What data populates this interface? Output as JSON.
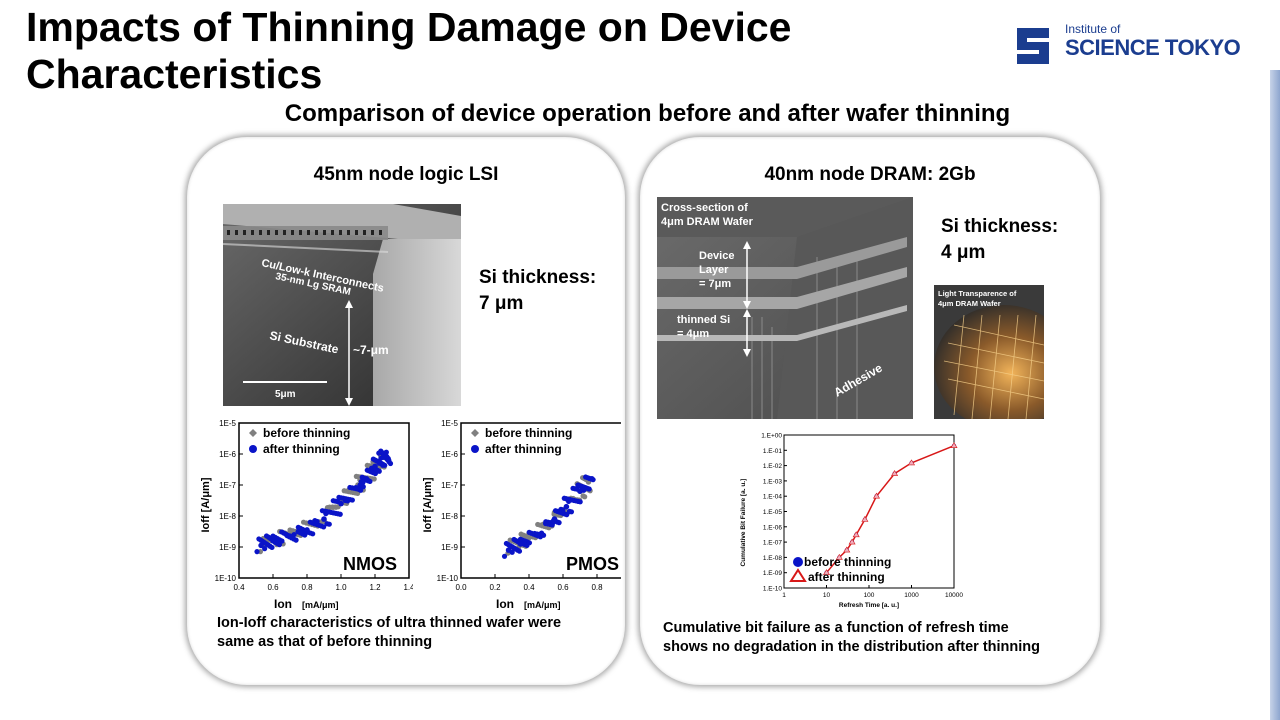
{
  "slide": {
    "title": "Impacts of Thinning Damage on Device Characteristics",
    "subtitle": "Comparison of device operation before and after wafer thinning"
  },
  "logo": {
    "line1": "Institute of",
    "line2": "SCIENCE TOKYO",
    "color": "#1b3d8f"
  },
  "left_panel": {
    "title": "45nm node logic LSI",
    "thickness_line1": "Si thickness:",
    "thickness_line2": "7 μm",
    "sem_labels": {
      "interconnects": "Cu/Low-k Interconnects",
      "sram": "35-nm Lg SRAM",
      "substrate": "Si Substrate",
      "depth": "~7-μm",
      "scalebar": "5μm"
    },
    "caption_line1": "Ion-Ioff characteristics of ultra thinned wafer were",
    "caption_line2": "same as that of before thinning"
  },
  "right_panel": {
    "title": "40nm node DRAM: 2Gb",
    "thickness_line1": "Si thickness:",
    "thickness_line2": "4 μm",
    "sem_labels": {
      "cross_section_1": "Cross-section of",
      "cross_section_2": "4μm DRAM Wafer",
      "device_1": "Device",
      "device_2": "Layer",
      "device_3": "= 7μm",
      "thinned_1": "thinned Si",
      "thinned_2": "= 4μm",
      "adhesive": "Adhesive"
    },
    "photo_labels": {
      "line1": "Light Transparence of",
      "line2": "4μm DRAM Wafer"
    },
    "caption_line1": "Cumulative bit failure as a function of refresh time",
    "caption_line2": "shows no degradation in the distribution after thinning"
  },
  "chart_data": [
    {
      "type": "scatter",
      "label": "NMOS",
      "xlabel": "Ion",
      "xunit": "[mA/μm]",
      "ylabel": "Ioff [A/μm]",
      "xlim": [
        0.4,
        1.4
      ],
      "ylim_log10": [
        -10,
        -5
      ],
      "xticks": [
        "0.4",
        "0.6",
        "0.8",
        "1.0",
        "1.2",
        "1.4"
      ],
      "yticks": [
        "1E-5",
        "1E-6",
        "1E-7",
        "1E-8",
        "1E-9",
        "1E-10"
      ],
      "legend": [
        "before thinning",
        "after thinning"
      ],
      "legend_colors": [
        "#808080",
        "#0a14c8"
      ],
      "series": [
        {
          "name": "before thinning",
          "x": [
            0.55,
            0.7,
            0.85,
            1.0,
            1.1,
            1.2,
            1.27
          ],
          "y_log10": [
            -8.95,
            -8.6,
            -8.25,
            -7.5,
            -7.0,
            -6.45,
            -6.15
          ]
        },
        {
          "name": "after thinning",
          "x": [
            0.53,
            0.6,
            0.7,
            0.8,
            0.9,
            1.0,
            1.1,
            1.15,
            1.2,
            1.25,
            1.28
          ],
          "y_log10": [
            -8.95,
            -8.8,
            -8.65,
            -8.45,
            -8.1,
            -7.6,
            -7.1,
            -6.8,
            -6.4,
            -6.1,
            -6.2
          ]
        }
      ]
    },
    {
      "type": "scatter",
      "label": "PMOS",
      "xlabel": "Ion",
      "xunit": "[mA/μm]",
      "ylabel": "Ioff [A/μm]",
      "xlim": [
        0.0,
        1.0
      ],
      "ylim_log10": [
        -10,
        -5
      ],
      "xticks": [
        "0.0",
        "0.2",
        "0.4",
        "0.6",
        "0.8",
        "1.0"
      ],
      "yticks": [
        "1E-5",
        "1E-6",
        "1E-7",
        "1E-8",
        "1E-9",
        "1E-10"
      ],
      "legend": [
        "before thinning",
        "after thinning"
      ],
      "legend_colors": [
        "#808080",
        "#0a14c8"
      ],
      "series": [
        {
          "name": "before thinning",
          "x": [
            0.3,
            0.4,
            0.5,
            0.6,
            0.7,
            0.75
          ],
          "y_log10": [
            -9.0,
            -8.7,
            -8.3,
            -7.8,
            -7.2,
            -6.9
          ]
        },
        {
          "name": "after thinning",
          "x": [
            0.28,
            0.35,
            0.45,
            0.55,
            0.62,
            0.7,
            0.77
          ],
          "y_log10": [
            -9.1,
            -8.9,
            -8.6,
            -8.1,
            -7.7,
            -7.2,
            -6.8
          ]
        }
      ]
    },
    {
      "type": "line",
      "xlabel": "Refresh Time [a. u.]",
      "ylabel": "Cumulative Bit Failure [a. u.]",
      "xlim_log10": [
        0,
        4
      ],
      "ylim_log10": [
        -10,
        0
      ],
      "xticks": [
        "1",
        "10",
        "100",
        "1000",
        "10000"
      ],
      "yticks": [
        "1.E+00",
        "1.E-01",
        "1.E-02",
        "1.E-03",
        "1.E-04",
        "1.E-05",
        "1.E-06",
        "1.E-07",
        "1.E-08",
        "1.E-09",
        "1.E-10"
      ],
      "legend": [
        "before thinning",
        "after thinning"
      ],
      "legend_colors": [
        "#0a14c8",
        "#d81818"
      ],
      "series": [
        {
          "name": "before thinning",
          "x": [
            10,
            20,
            30,
            40,
            50,
            80,
            150,
            400,
            1000,
            10000
          ],
          "y": [
            1e-09,
            1e-08,
            3e-08,
            1e-07,
            3e-07,
            3e-06,
            0.0001,
            0.003,
            0.015,
            0.2
          ]
        },
        {
          "name": "after thinning",
          "x": [
            10,
            20,
            30,
            40,
            50,
            80,
            150,
            400,
            1000,
            10000
          ],
          "y": [
            1e-09,
            1e-08,
            3e-08,
            1e-07,
            3e-07,
            3e-06,
            0.0001,
            0.003,
            0.015,
            0.2
          ]
        }
      ]
    }
  ]
}
